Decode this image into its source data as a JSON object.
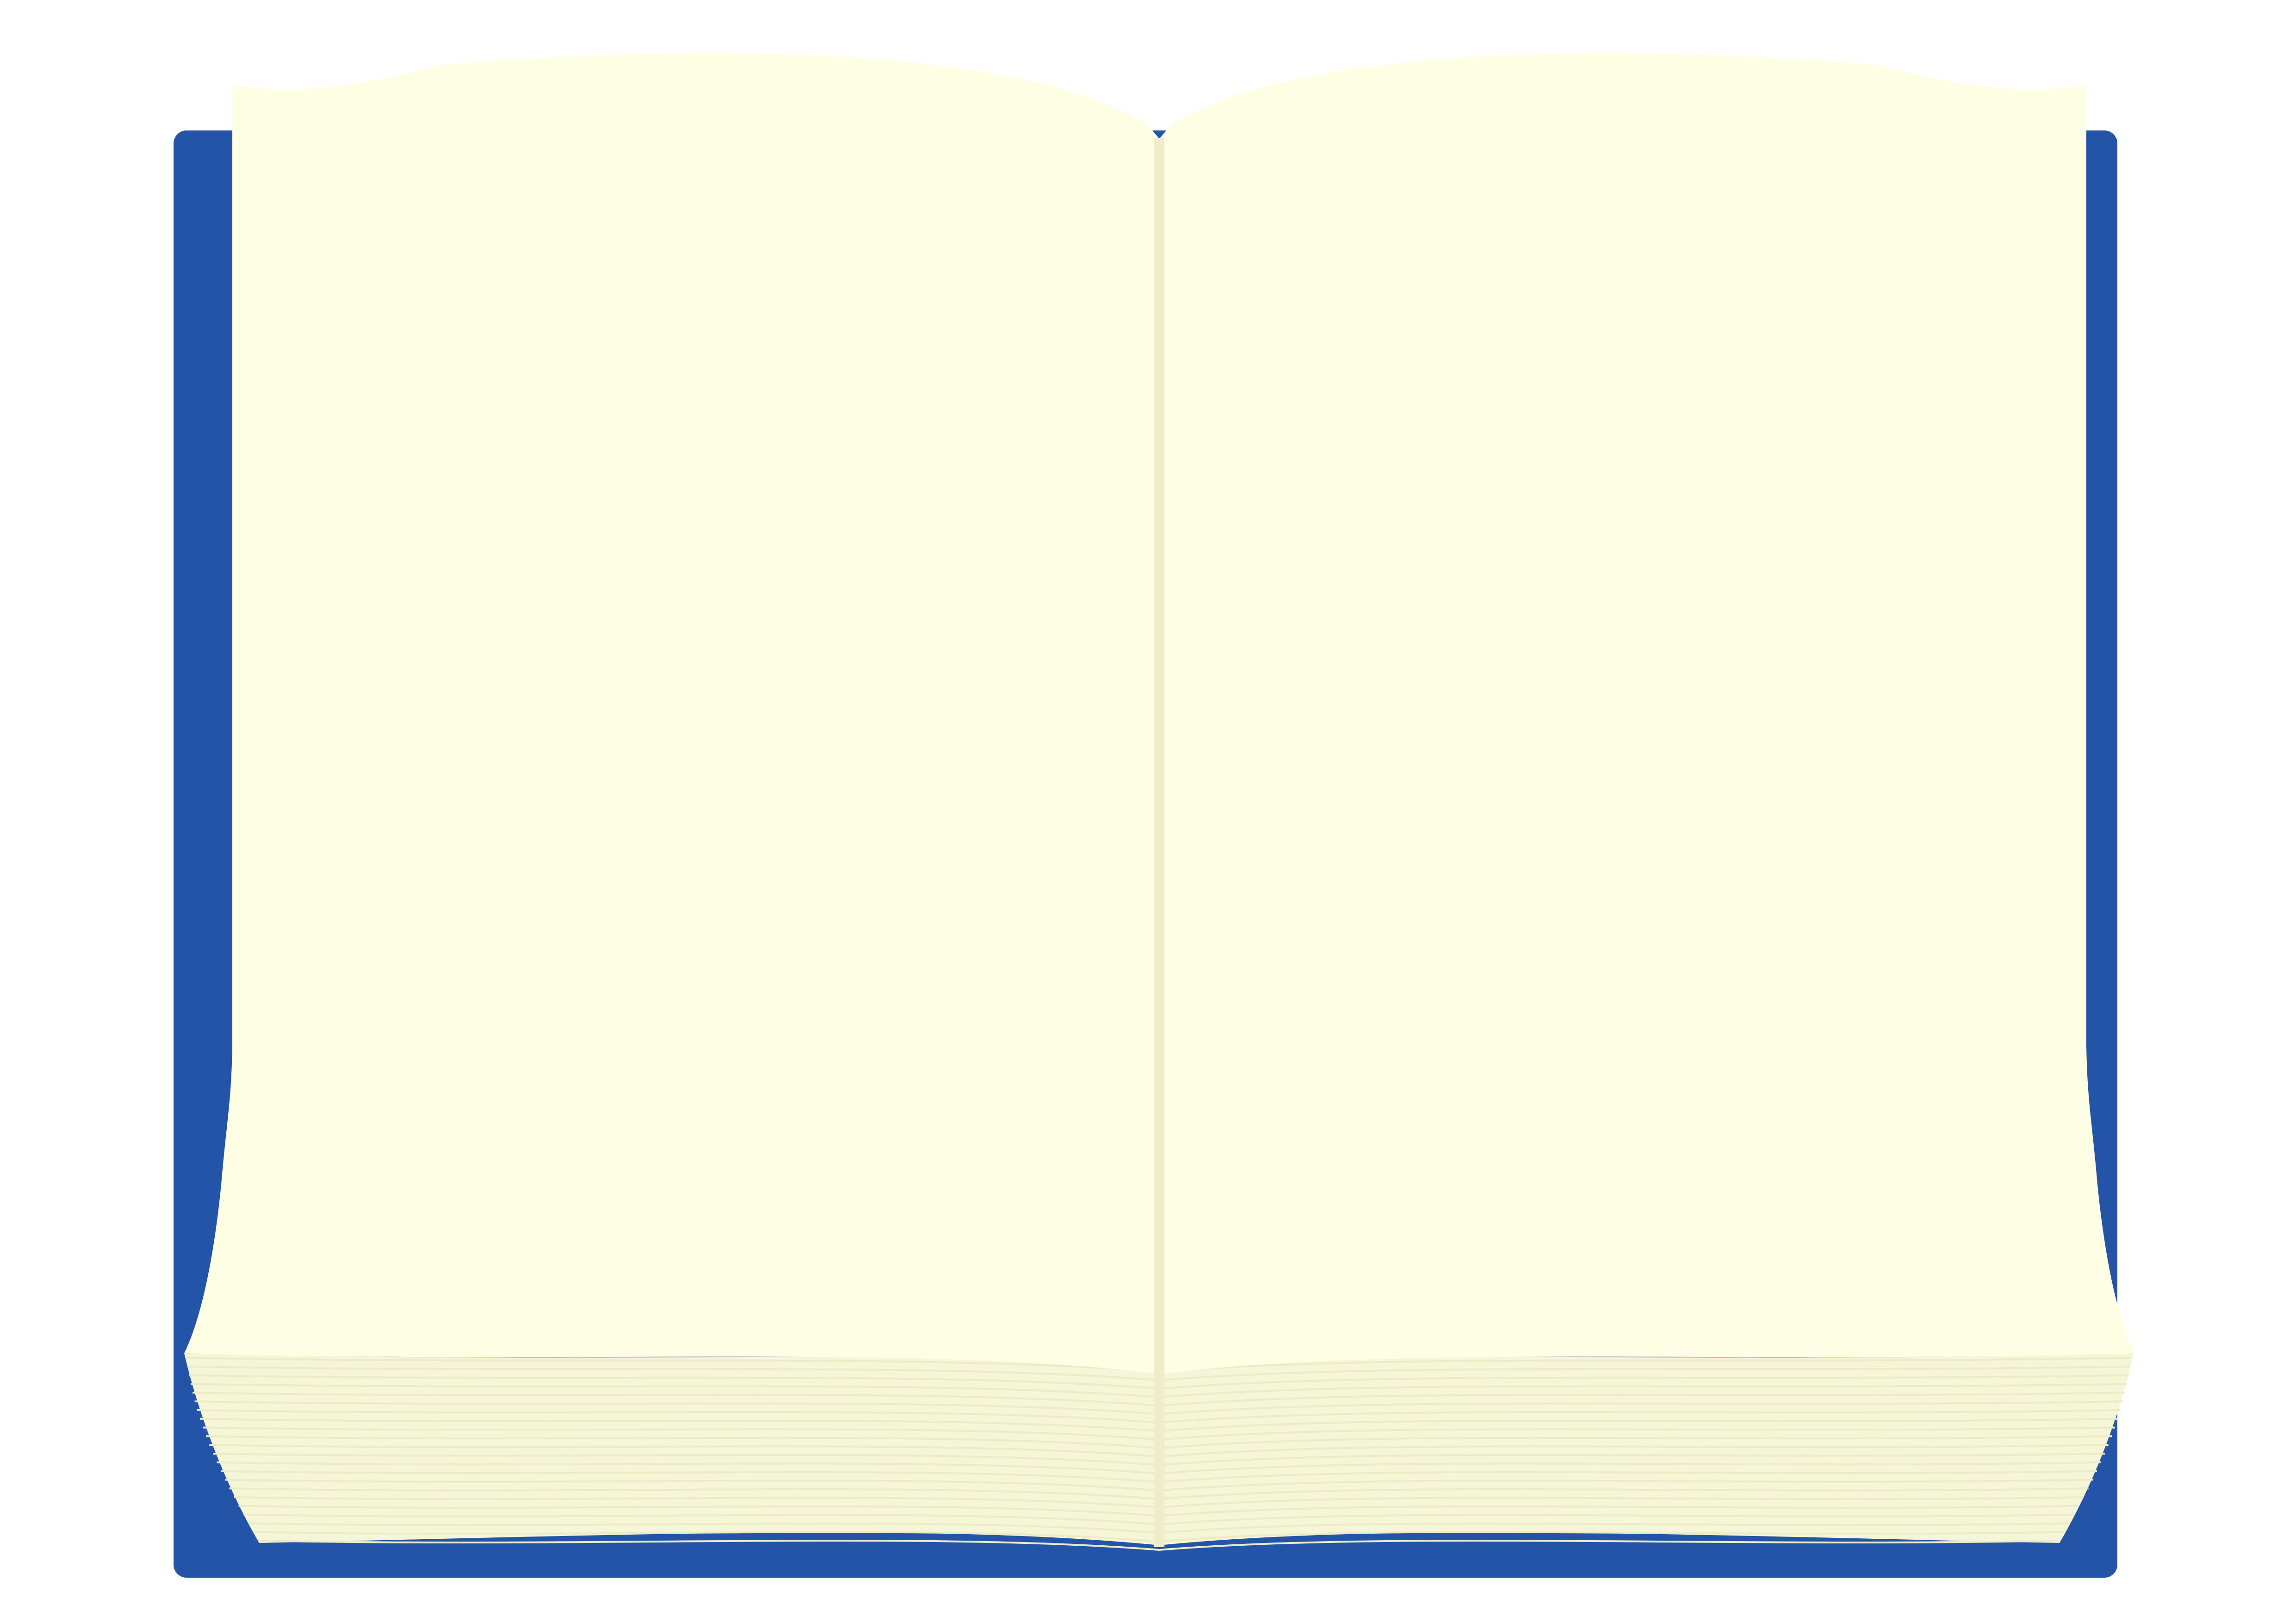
{
  "scene": {
    "subject": "open-book-illustration",
    "colors": {
      "background": "#ffffff",
      "cover": "#2454a8",
      "page": "#fefee5",
      "page_shadow": "#f5f5d8",
      "edge_lines": "#ecebc6",
      "spine": "#eeedc9"
    }
  }
}
